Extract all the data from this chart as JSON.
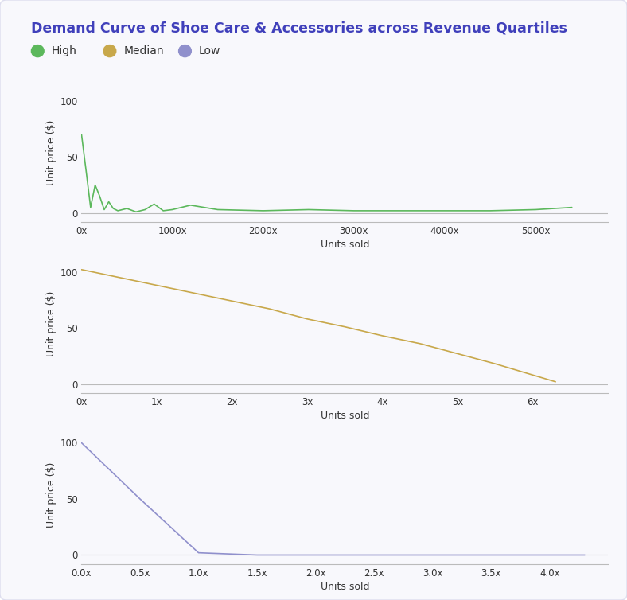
{
  "title": "Demand Curve of Shoe Care & Accessories across Revenue Quartiles",
  "title_color": "#4040bb",
  "background_color": "#f7f7fb",
  "plot_bg": "#f7f7fb",
  "legend": [
    {
      "label": "High",
      "color": "#5cb85c"
    },
    {
      "label": "Median",
      "color": "#c8a84b"
    },
    {
      "label": "Low",
      "color": "#9090cc"
    }
  ],
  "subplots": [
    {
      "quartile": "High",
      "color": "#5cb85c",
      "ylabel": "Unit price ($)",
      "xlabel": "Units sold",
      "xlim": [
        0,
        5800
      ],
      "ylim": [
        -8,
        115
      ],
      "yticks": [
        0,
        50,
        100
      ],
      "ytick_labels": [
        "0",
        "50",
        "100"
      ],
      "xticks": [
        0,
        1000,
        2000,
        3000,
        4000,
        5000
      ],
      "xtick_labels": [
        "0x",
        "1000x",
        "2000x",
        "3000x",
        "4000x",
        "5000x"
      ],
      "x": [
        0,
        50,
        100,
        150,
        200,
        250,
        300,
        350,
        400,
        500,
        600,
        700,
        800,
        900,
        1000,
        1200,
        1500,
        2000,
        2500,
        3000,
        3500,
        4000,
        4500,
        5000,
        5400
      ],
      "y": [
        70,
        38,
        5,
        25,
        15,
        3,
        10,
        4,
        2,
        4,
        1,
        3,
        8,
        2,
        3,
        7,
        3,
        2,
        3,
        2,
        2,
        2,
        2,
        3,
        5
      ]
    },
    {
      "quartile": "Median",
      "color": "#c8a84b",
      "ylabel": "Unit price ($)",
      "xlabel": "Units sold",
      "xlim": [
        0,
        7
      ],
      "ylim": [
        -8,
        115
      ],
      "yticks": [
        0,
        50,
        100
      ],
      "ytick_labels": [
        "0",
        "50",
        "100"
      ],
      "xticks": [
        0,
        1,
        2,
        3,
        4,
        5,
        6
      ],
      "xtick_labels": [
        "0x",
        "1x",
        "2x",
        "3x",
        "4x",
        "5x",
        "6x"
      ],
      "x": [
        0,
        0.5,
        1.0,
        1.5,
        2.0,
        2.5,
        3.0,
        3.5,
        4.0,
        4.5,
        5.0,
        5.5,
        6.0,
        6.3
      ],
      "y": [
        102,
        95,
        88,
        81,
        74,
        67,
        58,
        51,
        43,
        36,
        27,
        18,
        8,
        2
      ]
    },
    {
      "quartile": "Low",
      "color": "#9090cc",
      "ylabel": "Unit price ($)",
      "xlabel": "Units sold",
      "xlim": [
        0,
        4.5
      ],
      "ylim": [
        -8,
        115
      ],
      "yticks": [
        0,
        50,
        100
      ],
      "ytick_labels": [
        "0",
        "50",
        "100"
      ],
      "xticks": [
        0.0,
        0.5,
        1.0,
        1.5,
        2.0,
        2.5,
        3.0,
        3.5,
        4.0
      ],
      "xtick_labels": [
        "0.0x",
        "0.5x",
        "1.0x",
        "1.5x",
        "2.0x",
        "2.5x",
        "3.0x",
        "3.5x",
        "4.0x"
      ],
      "x": [
        0,
        0.5,
        1.0,
        1.5,
        2.0,
        2.5,
        3.0,
        3.5,
        4.0,
        4.3
      ],
      "y": [
        100,
        50,
        2,
        0,
        0,
        0,
        0,
        0,
        0,
        0
      ]
    }
  ]
}
